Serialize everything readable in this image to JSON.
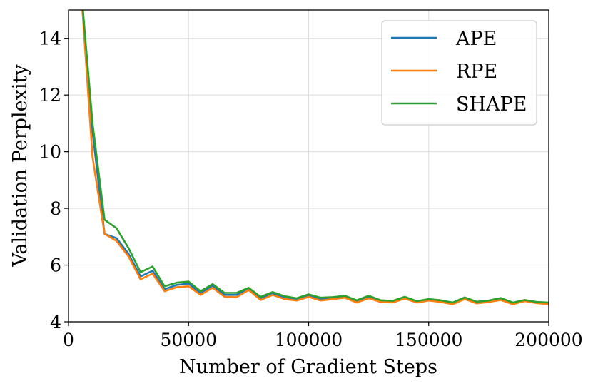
{
  "chart_data": {
    "type": "line",
    "title": "",
    "xlabel": "Number of Gradient Steps",
    "ylabel": "Validation Perplexity",
    "xlim": [
      0,
      200000
    ],
    "ylim": [
      4,
      15
    ],
    "xticks": [
      0,
      50000,
      100000,
      150000,
      200000
    ],
    "xtick_labels": [
      "0",
      "50000",
      "100000",
      "150000",
      "200000"
    ],
    "yticks": [
      4,
      6,
      8,
      10,
      12,
      14
    ],
    "ytick_labels": [
      "4",
      "6",
      "8",
      "10",
      "12",
      "14"
    ],
    "grid": true,
    "legend_position": "top-right",
    "x": [
      0,
      5000,
      10000,
      15000,
      20000,
      25000,
      30000,
      35000,
      40000,
      45000,
      50000,
      55000,
      60000,
      65000,
      70000,
      75000,
      80000,
      85000,
      90000,
      95000,
      100000,
      105000,
      110000,
      115000,
      120000,
      125000,
      130000,
      135000,
      140000,
      145000,
      150000,
      155000,
      160000,
      165000,
      170000,
      175000,
      180000,
      185000,
      190000,
      195000,
      200000
    ],
    "series": [
      {
        "name": "APE",
        "color": "#1f77b4",
        "values": [
          null,
          16.0,
          10.7,
          7.1,
          6.95,
          6.4,
          5.6,
          5.8,
          5.15,
          5.3,
          5.35,
          5.0,
          5.28,
          4.95,
          4.95,
          5.18,
          4.82,
          5.0,
          4.85,
          4.78,
          4.93,
          4.8,
          4.83,
          4.88,
          4.72,
          4.88,
          4.72,
          4.7,
          4.85,
          4.7,
          4.78,
          4.72,
          4.65,
          4.82,
          4.68,
          4.72,
          4.8,
          4.65,
          4.75,
          4.68,
          4.65
        ]
      },
      {
        "name": "RPE",
        "color": "#ff7f0e",
        "values": [
          null,
          16.0,
          9.8,
          7.1,
          6.85,
          6.3,
          5.5,
          5.7,
          5.08,
          5.22,
          5.25,
          4.95,
          5.2,
          4.88,
          4.87,
          5.12,
          4.77,
          4.95,
          4.8,
          4.75,
          4.88,
          4.75,
          4.8,
          4.85,
          4.68,
          4.83,
          4.7,
          4.68,
          4.82,
          4.68,
          4.75,
          4.7,
          4.62,
          4.8,
          4.65,
          4.7,
          4.77,
          4.62,
          4.73,
          4.66,
          4.62
        ]
      },
      {
        "name": "SHAPE",
        "color": "#2ca02c",
        "values": [
          null,
          16.0,
          11.0,
          7.6,
          7.3,
          6.6,
          5.75,
          5.95,
          5.25,
          5.38,
          5.42,
          5.08,
          5.33,
          5.02,
          5.02,
          5.2,
          4.88,
          5.05,
          4.9,
          4.83,
          4.97,
          4.85,
          4.87,
          4.92,
          4.76,
          4.92,
          4.76,
          4.74,
          4.88,
          4.73,
          4.8,
          4.76,
          4.68,
          4.86,
          4.71,
          4.75,
          4.84,
          4.68,
          4.77,
          4.7,
          4.68
        ]
      }
    ]
  }
}
